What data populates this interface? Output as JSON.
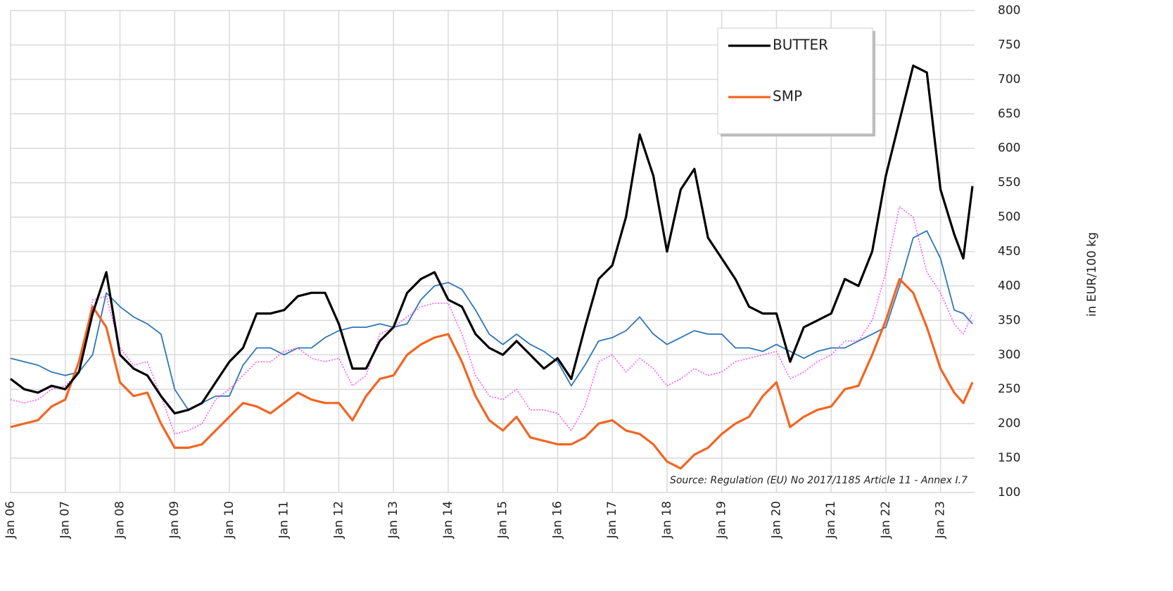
{
  "chart_data": {
    "type": "line",
    "y_label": "in EUR/100 kg",
    "annotation": "Source: Regulation (EU) No 2017/1185 Article 11 - Annex I.7",
    "legend": "upper right",
    "grid": true,
    "y_axis_side": "right",
    "x": [
      "2006-01",
      "2006-04",
      "2006-07",
      "2006-10",
      "2007-01",
      "2007-04",
      "2007-07",
      "2007-10",
      "2008-01",
      "2008-04",
      "2008-07",
      "2008-10",
      "2009-01",
      "2009-04",
      "2009-07",
      "2009-10",
      "2010-01",
      "2010-04",
      "2010-07",
      "2010-10",
      "2011-01",
      "2011-04",
      "2011-07",
      "2011-10",
      "2012-01",
      "2012-04",
      "2012-07",
      "2012-10",
      "2013-01",
      "2013-04",
      "2013-07",
      "2013-10",
      "2014-01",
      "2014-04",
      "2014-07",
      "2014-10",
      "2015-01",
      "2015-04",
      "2015-07",
      "2015-10",
      "2016-01",
      "2016-04",
      "2016-07",
      "2016-10",
      "2017-01",
      "2017-04",
      "2017-07",
      "2017-10",
      "2018-01",
      "2018-04",
      "2018-07",
      "2018-10",
      "2019-01",
      "2019-04",
      "2019-07",
      "2019-10",
      "2020-01",
      "2020-04",
      "2020-07",
      "2020-10",
      "2021-01",
      "2021-04",
      "2021-07",
      "2021-10",
      "2022-01",
      "2022-04",
      "2022-07",
      "2022-10",
      "2023-01",
      "2023-04",
      "2023-06",
      "2023-08"
    ],
    "series": [
      {
        "color": "#2e75b6",
        "width": 1.8,
        "values": [
          295,
          290,
          285,
          275,
          270,
          275,
          300,
          390,
          370,
          355,
          345,
          330,
          250,
          220,
          230,
          240,
          240,
          285,
          310,
          310,
          300,
          310,
          310,
          325,
          335,
          340,
          340,
          345,
          340,
          345,
          380,
          400,
          405,
          395,
          365,
          330,
          315,
          330,
          315,
          305,
          290,
          255,
          285,
          320,
          325,
          335,
          355,
          330,
          315,
          325,
          335,
          330,
          330,
          310,
          310,
          305,
          315,
          305,
          295,
          305,
          310,
          310,
          320,
          330,
          340,
          400,
          470,
          480,
          440,
          365,
          360,
          345
        ]
      },
      {
        "color": "#ff44ff",
        "width": 1.4,
        "style": "dotted",
        "values": [
          235,
          230,
          235,
          250,
          255,
          275,
          380,
          385,
          310,
          285,
          290,
          240,
          185,
          190,
          200,
          235,
          250,
          270,
          290,
          290,
          305,
          310,
          295,
          290,
          295,
          255,
          270,
          330,
          340,
          355,
          370,
          375,
          375,
          330,
          270,
          240,
          235,
          250,
          220,
          220,
          215,
          190,
          225,
          290,
          300,
          275,
          295,
          280,
          255,
          265,
          280,
          270,
          275,
          290,
          295,
          300,
          305,
          265,
          275,
          290,
          300,
          320,
          320,
          350,
          420,
          515,
          500,
          420,
          390,
          345,
          330,
          360
        ]
      },
      {
        "name": "SMP",
        "color": "#f26522",
        "width": 3.2,
        "values": [
          195,
          200,
          205,
          225,
          235,
          290,
          370,
          340,
          260,
          240,
          245,
          200,
          165,
          165,
          170,
          190,
          210,
          230,
          225,
          215,
          230,
          245,
          235,
          230,
          230,
          205,
          240,
          265,
          270,
          300,
          315,
          325,
          330,
          290,
          240,
          205,
          190,
          210,
          180,
          175,
          170,
          170,
          180,
          200,
          205,
          190,
          185,
          170,
          145,
          135,
          155,
          165,
          185,
          200,
          210,
          240,
          260,
          195,
          210,
          220,
          225,
          250,
          255,
          300,
          350,
          410,
          390,
          340,
          280,
          245,
          230,
          260
        ]
      },
      {
        "name": "BUTTER",
        "color": "#000000",
        "width": 3.2,
        "values": [
          265,
          250,
          245,
          255,
          250,
          275,
          360,
          420,
          300,
          280,
          270,
          240,
          215,
          220,
          230,
          260,
          290,
          310,
          360,
          360,
          365,
          385,
          390,
          390,
          345,
          280,
          280,
          320,
          340,
          390,
          410,
          420,
          380,
          370,
          330,
          310,
          300,
          320,
          300,
          280,
          295,
          265,
          340,
          410,
          430,
          500,
          620,
          560,
          450,
          540,
          570,
          470,
          440,
          410,
          370,
          360,
          360,
          290,
          340,
          350,
          360,
          410,
          400,
          450,
          560,
          640,
          720,
          710,
          540,
          475,
          440,
          545
        ]
      }
    ],
    "xlim": [
      "2006-01",
      "2023-08"
    ],
    "xticks": [
      {
        "value": "2006-01",
        "label": "Jan 06"
      },
      {
        "value": "2007-01",
        "label": "Jan 07"
      },
      {
        "value": "2008-01",
        "label": "Jan 08"
      },
      {
        "value": "2009-01",
        "label": "Jan 09"
      },
      {
        "value": "2010-01",
        "label": "Jan 10"
      },
      {
        "value": "2011-01",
        "label": "Jan 11"
      },
      {
        "value": "2012-01",
        "label": "Jan 12"
      },
      {
        "value": "2013-01",
        "label": "Jan 13"
      },
      {
        "value": "2014-01",
        "label": "Jan 14"
      },
      {
        "value": "2015-01",
        "label": "Jan 15"
      },
      {
        "value": "2016-01",
        "label": "Jan 16"
      },
      {
        "value": "2017-01",
        "label": "Jan 17"
      },
      {
        "value": "2018-01",
        "label": "Jan 18"
      },
      {
        "value": "2019-01",
        "label": "Jan 19"
      },
      {
        "value": "2020-01",
        "label": "Jan 20"
      },
      {
        "value": "2021-01",
        "label": "Jan 21"
      },
      {
        "value": "2022-01",
        "label": "Jan 22"
      },
      {
        "value": "2023-01",
        "label": "Jan 23"
      }
    ],
    "ylim": [
      100,
      800
    ],
    "yticks": [
      100,
      150,
      200,
      250,
      300,
      350,
      400,
      450,
      500,
      550,
      600,
      650,
      700,
      750,
      800
    ]
  }
}
